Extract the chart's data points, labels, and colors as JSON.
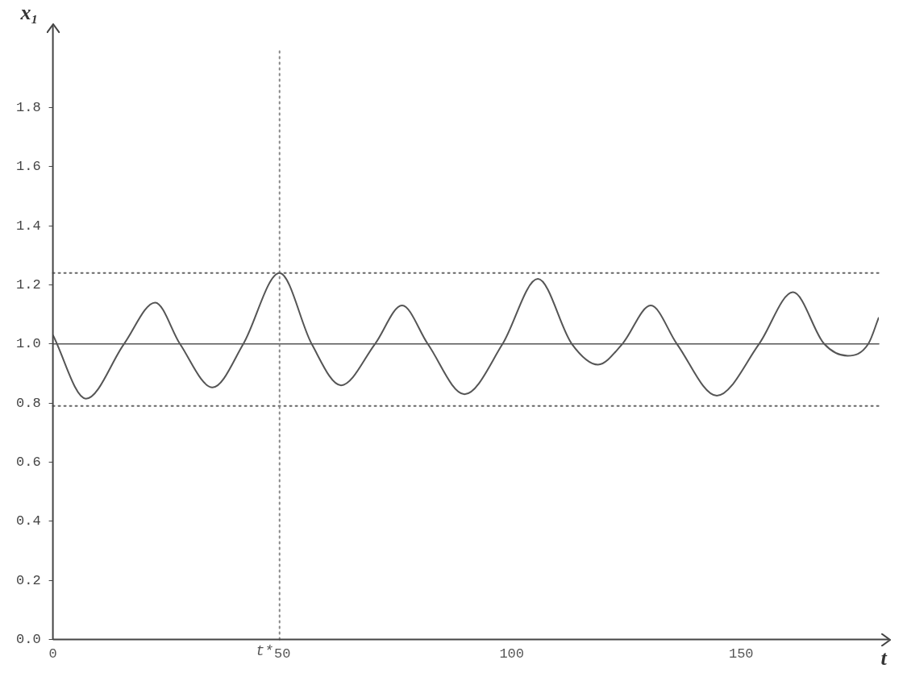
{
  "chart_data": {
    "type": "line",
    "xlabel": "t",
    "ylabel": "x₁",
    "xlim": [
      0,
      180
    ],
    "ylim": [
      0,
      2
    ],
    "xticks": [
      0,
      50,
      100,
      150
    ],
    "yticks": [
      {
        "value": 0,
        "label": "0.0"
      },
      {
        "value": 0.2,
        "label": "0.2"
      },
      {
        "value": 0.4,
        "label": "0.4"
      },
      {
        "value": 0.6,
        "label": "0.6"
      },
      {
        "value": 0.8,
        "label": "0.8"
      },
      {
        "value": 1,
        "label": "1.0"
      },
      {
        "value": 1.2,
        "label": "1.2"
      },
      {
        "value": 1.4,
        "label": "1.4"
      },
      {
        "value": 1.6,
        "label": "1.6"
      },
      {
        "value": 1.8,
        "label": "1.8"
      }
    ],
    "grid": false,
    "legend": false,
    "marker": "none",
    "line_style": "solid",
    "series": [
      {
        "color": "#555555",
        "x": [
          0,
          7.2,
          15.5,
          22.3,
          27.7,
          34.8,
          41.5,
          49.4,
          56.4,
          62.8,
          70.2,
          76.1,
          81.7,
          89.7,
          98,
          105.7,
          113.1,
          118.8,
          124.1,
          130.3,
          136,
          144.7,
          153.9,
          161.3,
          168.1,
          173.2,
          177.7,
          180
        ],
        "values": [
          1.03,
          0.815,
          1.0,
          1.14,
          1.0,
          0.853,
          1.0,
          1.24,
          1.0,
          0.86,
          1.0,
          1.13,
          1.0,
          0.83,
          1.0,
          1.22,
          1.0,
          0.93,
          1.0,
          1.13,
          1.0,
          0.825,
          1.0,
          1.175,
          1.0,
          0.96,
          1.0,
          1.09
        ]
      }
    ],
    "ref_lines": [
      {
        "axis": "y",
        "value": 1.0,
        "color": "#555555",
        "line_style": "solid"
      },
      {
        "axis": "y",
        "value": 1.24,
        "color": "#666666",
        "line_style": "dotted"
      },
      {
        "axis": "y",
        "value": 0.79,
        "color": "#666666",
        "line_style": "dotted"
      },
      {
        "axis": "x",
        "value": 49.4,
        "label": "t*",
        "color": "#888888",
        "line_style": "dotted"
      }
    ]
  }
}
